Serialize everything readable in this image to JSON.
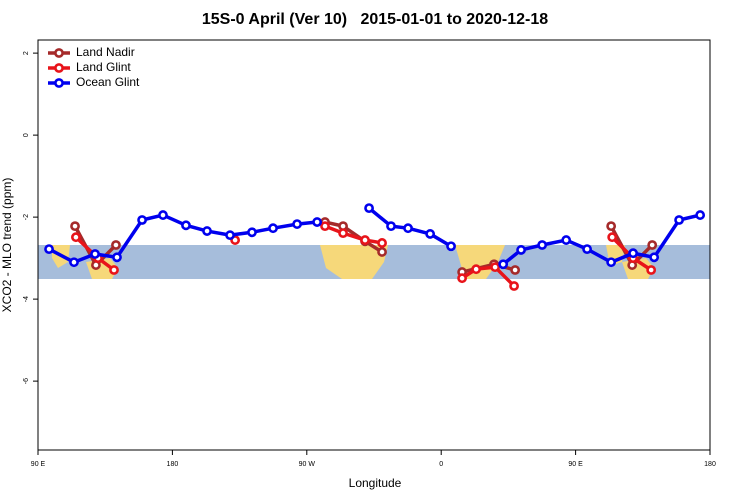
{
  "chart_data": {
    "type": "line",
    "title": "15S-0 April (Ver 10)   2015-01-01 to 2020-12-18",
    "x_label": "Longitude",
    "y_label": "XCO2 - MLO trend (ppm)",
    "xlim": [
      90,
      540
    ],
    "xticks": [
      {
        "value": 90,
        "label": "90 E"
      },
      180,
      {
        "value": 270,
        "label": "90 W"
      },
      {
        "value": 360,
        "label": "0"
      },
      {
        "value": 450,
        "label": "90 E"
      },
      {
        "value": 540,
        "label": "180"
      }
    ],
    "ylim": [
      -7.68,
      2.32
    ],
    "yticks": [
      -6,
      -4,
      -2,
      0,
      2
    ],
    "legend": "top-left",
    "series": [
      {
        "name": "Land Nadir",
        "color": "#a52a2a",
        "x": [
          114.8,
          128.8,
          142.2,
          null,
          282.2,
          294.3,
          309.0,
          320.4,
          null,
          374.0,
          395.4,
          409.5,
          null,
          473.8,
          487.9,
          501.3
        ],
        "values": [
          -2.22,
          -3.17,
          -2.68,
          null,
          -2.12,
          -2.22,
          -2.59,
          -2.85,
          null,
          -3.34,
          -3.15,
          -3.29,
          null,
          -2.22,
          -3.17,
          -2.68
        ]
      },
      {
        "name": "Land Glint",
        "color": "#e8141a",
        "x": [
          115.4,
          130.2,
          140.9,
          null,
          222.0,
          null,
          282.2,
          294.3,
          309.0,
          320.4,
          null,
          374.0,
          383.4,
          396.1,
          408.8,
          null,
          474.5,
          488.5,
          500.6
        ],
        "values": [
          -2.49,
          -3.0,
          -3.29,
          null,
          -2.56,
          null,
          -2.22,
          -2.39,
          -2.56,
          -2.63,
          null,
          -3.49,
          -3.27,
          -3.22,
          -3.68,
          null,
          -2.49,
          -3.0,
          -3.29
        ]
      },
      {
        "name": "Ocean Glint",
        "color": "#0000ee",
        "x": [
          97.4,
          114.1,
          128.2,
          142.9,
          159.7,
          173.7,
          189.1,
          203.2,
          218.6,
          233.3,
          247.4,
          263.5,
          276.9,
          null,
          311.7,
          326.4,
          337.8,
          352.6,
          366.6,
          null,
          401.5,
          413.5,
          427.6,
          443.7,
          457.7,
          473.8,
          488.5,
          502.6,
          519.3,
          533.4
        ],
        "values": [
          -2.78,
          -3.1,
          -2.9,
          -2.98,
          -2.07,
          -1.95,
          -2.2,
          -2.34,
          -2.44,
          -2.37,
          -2.27,
          -2.17,
          -2.12,
          null,
          -1.78,
          -2.22,
          -2.27,
          -2.41,
          -2.71,
          null,
          -3.15,
          -2.8,
          -2.68,
          -2.56,
          -2.78,
          -3.1,
          -2.88,
          -2.98,
          -2.07,
          -1.95
        ]
      }
    ]
  }
}
